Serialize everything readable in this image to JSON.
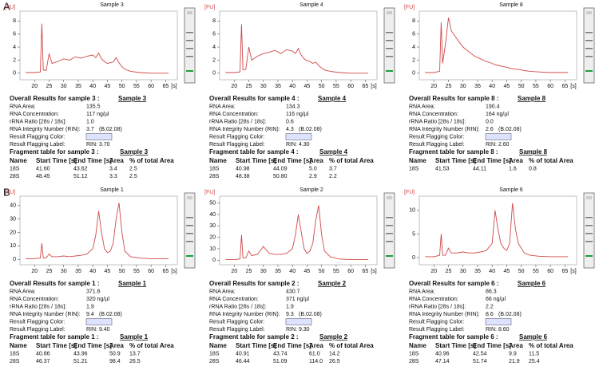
{
  "panel_labels": [
    "A",
    "B"
  ],
  "chart_data": [
    {
      "type": "line",
      "title": "Sample 3",
      "ylabel": "[FU]",
      "xlabel": "[s]",
      "color": "#d04848",
      "x": [
        17,
        20,
        22,
        22.5,
        23,
        24,
        25,
        26,
        28,
        30,
        32,
        34,
        36,
        38,
        40,
        41,
        42,
        43,
        44,
        45,
        46,
        47,
        48,
        49,
        50,
        51,
        53,
        56,
        60,
        66
      ],
      "values": [
        0.1,
        0.1,
        0.2,
        7.6,
        0.5,
        0.4,
        3.0,
        1.5,
        1.8,
        2.2,
        2.0,
        2.5,
        2.3,
        2.6,
        2.8,
        2.4,
        3.1,
        2.2,
        1.8,
        1.5,
        1.6,
        1.7,
        2.4,
        1.6,
        1.0,
        0.6,
        0.3,
        0.1,
        0.0,
        0.0
      ],
      "xlim": [
        15,
        69
      ],
      "ylim": [
        -1,
        9.5
      ],
      "xticks": [
        20,
        25,
        30,
        35,
        40,
        45,
        50,
        55,
        60,
        65
      ],
      "yticks": [
        0,
        2,
        4,
        6,
        8
      ]
    },
    {
      "type": "line",
      "title": "Sample 4",
      "ylabel": "[FU]",
      "xlabel": "[s]",
      "color": "#d04848",
      "x": [
        17,
        20,
        22,
        22.5,
        23,
        24,
        25,
        26,
        28,
        30,
        32,
        34,
        36,
        38,
        40,
        41,
        42,
        43,
        44,
        45,
        46,
        47,
        48,
        49,
        50,
        51,
        53,
        56,
        60,
        66
      ],
      "values": [
        0.1,
        0.1,
        0.2,
        7.5,
        0.5,
        0.6,
        4.0,
        2.0,
        2.6,
        3.0,
        3.2,
        3.5,
        3.0,
        3.6,
        3.4,
        3.0,
        3.8,
        2.8,
        2.2,
        1.9,
        1.8,
        1.5,
        1.7,
        1.2,
        0.8,
        0.5,
        0.3,
        0.1,
        0.0,
        0.0
      ],
      "xlim": [
        15,
        69
      ],
      "ylim": [
        -1,
        9.5
      ],
      "xticks": [
        20,
        25,
        30,
        35,
        40,
        45,
        50,
        55,
        60,
        65
      ],
      "yticks": [
        0,
        2,
        4,
        6,
        8
      ]
    },
    {
      "type": "line",
      "title": "Sample 8",
      "ylabel": "[FU]",
      "xlabel": "[s]",
      "color": "#d04848",
      "x": [
        17,
        20,
        22,
        22.5,
        23,
        24,
        25,
        26,
        28,
        30,
        32,
        34,
        36,
        38,
        40,
        41,
        42,
        43,
        44,
        45,
        46,
        47,
        48,
        49,
        50,
        51,
        53,
        56,
        60,
        66
      ],
      "values": [
        0.1,
        0.1,
        0.3,
        7.8,
        1.5,
        4.5,
        8.5,
        6.5,
        5.2,
        4.0,
        3.3,
        2.6,
        2.2,
        1.8,
        1.5,
        1.3,
        1.2,
        1.1,
        1.0,
        0.9,
        0.8,
        0.7,
        0.6,
        0.6,
        0.5,
        0.4,
        0.3,
        0.2,
        0.1,
        0.1
      ],
      "xlim": [
        15,
        69
      ],
      "ylim": [
        -1,
        9.5
      ],
      "xticks": [
        20,
        25,
        30,
        35,
        40,
        45,
        50,
        55,
        60,
        65
      ],
      "yticks": [
        0,
        2,
        4,
        6,
        8
      ]
    },
    {
      "type": "line",
      "title": "Sample 1",
      "ylabel": "[FU]",
      "xlabel": "[s]",
      "color": "#d04848",
      "x": [
        17,
        20,
        22,
        22.5,
        23,
        24,
        25,
        26,
        28,
        30,
        32,
        34,
        36,
        38,
        40,
        41,
        42,
        43,
        44,
        45,
        46,
        47,
        48,
        49,
        50,
        51,
        53,
        56,
        60,
        66
      ],
      "values": [
        0.5,
        0.5,
        1,
        12,
        1,
        1,
        4,
        2,
        2,
        2.5,
        2,
        2.5,
        3,
        4,
        8,
        18,
        36,
        20,
        8,
        5,
        6,
        12,
        30,
        42,
        20,
        6,
        2,
        1,
        0.5,
        0.5
      ],
      "xlim": [
        15,
        69
      ],
      "ylim": [
        -4,
        47
      ],
      "xticks": [
        20,
        25,
        30,
        35,
        40,
        45,
        50,
        55,
        60,
        65
      ],
      "yticks": [
        0,
        10,
        20,
        30,
        40
      ]
    },
    {
      "type": "line",
      "title": "Sample 2",
      "ylabel": "[FU]",
      "xlabel": "[s]",
      "color": "#d04848",
      "x": [
        17,
        20,
        22,
        22.5,
        23,
        24,
        25,
        26,
        28,
        30,
        32,
        34,
        36,
        38,
        40,
        41,
        42,
        43,
        44,
        45,
        46,
        47,
        48,
        49,
        50,
        51,
        53,
        56,
        60,
        66
      ],
      "values": [
        0.5,
        0.5,
        1,
        22,
        2,
        2,
        8,
        4,
        5,
        12,
        6,
        5,
        5,
        6,
        10,
        22,
        40,
        25,
        10,
        6,
        8,
        15,
        35,
        48,
        22,
        8,
        3,
        1,
        0.5,
        0.5
      ],
      "xlim": [
        15,
        69
      ],
      "ylim": [
        -4,
        56
      ],
      "xticks": [
        20,
        25,
        30,
        35,
        40,
        45,
        50,
        55,
        60,
        65
      ],
      "yticks": [
        0,
        10,
        20,
        30,
        40,
        50
      ]
    },
    {
      "type": "line",
      "title": "Sample 6",
      "ylabel": "[FU]",
      "xlabel": "[s]",
      "color": "#d04848",
      "x": [
        17,
        20,
        22,
        22.5,
        23,
        24,
        25,
        26,
        28,
        30,
        32,
        34,
        36,
        38,
        40,
        41,
        42,
        43,
        44,
        45,
        46,
        47,
        48,
        49,
        50,
        51,
        53,
        56,
        60,
        66
      ],
      "values": [
        0.2,
        0.2,
        0.5,
        5,
        0.5,
        0.5,
        2,
        1,
        1,
        1.2,
        1,
        1,
        1.2,
        1.5,
        3,
        10,
        6,
        3,
        2,
        1.5,
        3,
        11.5,
        6,
        3,
        2,
        1,
        0.5,
        0.3,
        0.2,
        0.2
      ],
      "xlim": [
        15,
        69
      ],
      "ylim": [
        -1.5,
        13
      ],
      "xticks": [
        20,
        25,
        30,
        35,
        40,
        45,
        50,
        55,
        60,
        65
      ],
      "yticks": [
        0,
        5,
        10
      ]
    }
  ],
  "results": [
    {
      "heading": "Overall Results for sample 3 :",
      "sample": "Sample 3",
      "fields": [
        {
          "label": "RNA Area:",
          "value": "135.5"
        },
        {
          "label": "RNA Concentration:",
          "value": "117 ng/µl"
        },
        {
          "label": "rRNA Ratio [28s / 18s]:",
          "value": "1.0"
        },
        {
          "label": "RNA Integrity Number (RIN):",
          "value": "3.7",
          "note": "(B.02.08)"
        },
        {
          "label": "Result Flagging Color:"
        },
        {
          "label": "Result Flagging Label:",
          "value": "RIN: 3.70"
        }
      ],
      "fragment_heading": "Fragment table for sample 3 :",
      "fragment_sample": "Sample 3",
      "columns": [
        "Name",
        "Start Time [s]",
        "End Time [s]",
        "Area",
        "% of total Area"
      ],
      "rows": [
        [
          "18S",
          "41.60",
          "43.62",
          "3.4",
          "2.5"
        ],
        [
          "28S",
          "48.45",
          "51.12",
          "3.3",
          "2.5"
        ]
      ]
    },
    {
      "heading": "Overall Results for sample 4 :",
      "sample": "Sample 4",
      "fields": [
        {
          "label": "RNA Area:",
          "value": "134.3"
        },
        {
          "label": "RNA Concentration:",
          "value": "116 ng/µl"
        },
        {
          "label": "rRNA Ratio [28s / 18s]:",
          "value": "0.6"
        },
        {
          "label": "RNA Integrity Number (RIN):",
          "value": "4.3",
          "note": "(B.02.08)"
        },
        {
          "label": "Result Flagging Color:"
        },
        {
          "label": "Result Flagging Label:",
          "value": "RIN: 4.30"
        }
      ],
      "fragment_heading": "Fragment table for sample 4 :",
      "fragment_sample": "Sample 4",
      "columns": [
        "Name",
        "Start Time [s]",
        "End Time [s]",
        "Area",
        "% of total Area"
      ],
      "rows": [
        [
          "18S",
          "40.98",
          "44.09",
          "5.0",
          "3.7"
        ],
        [
          "28S",
          "48.38",
          "50.80",
          "2.9",
          "2.2"
        ]
      ]
    },
    {
      "heading": "Overall Results for sample 8 :",
      "sample": "Sample 8",
      "fields": [
        {
          "label": "RNA Area:",
          "value": "190.4"
        },
        {
          "label": "RNA Concentration:",
          "value": "164 ng/µl"
        },
        {
          "label": "rRNA Ratio [28s / 18s]:",
          "value": "0.0"
        },
        {
          "label": "RNA Integrity Number (RIN):",
          "value": "2.6",
          "note": "(B.02.08)"
        },
        {
          "label": "Result Flagging Color:"
        },
        {
          "label": "Result Flagging Label:",
          "value": "RIN: 2.60"
        }
      ],
      "fragment_heading": "Fragment table for sample 8 :",
      "fragment_sample": "Sample 8",
      "columns": [
        "Name",
        "Start Time [s]",
        "End Time [s]",
        "Area",
        "% of total Area"
      ],
      "rows": [
        [
          "18S",
          "41.53",
          "44.11",
          "1.6",
          "0.8"
        ]
      ]
    },
    {
      "heading": "Overall Results for sample 1 :",
      "sample": "Sample 1",
      "fields": [
        {
          "label": "RNA Area:",
          "value": "371.6"
        },
        {
          "label": "RNA Concentration:",
          "value": "320 ng/µl"
        },
        {
          "label": "rRNA Ratio [28s / 18s]:",
          "value": "1.9"
        },
        {
          "label": "RNA Integrity Number (RIN):",
          "value": "9.4",
          "note": "(B.02.08)"
        },
        {
          "label": "Result Flagging Color:"
        },
        {
          "label": "Result Flagging Label:",
          "value": "RIN: 9.40"
        }
      ],
      "fragment_heading": "Fragment table for sample 1 :",
      "fragment_sample": "Sample 1",
      "columns": [
        "Name",
        "Start Time [s]",
        "End Time [s]",
        "Area",
        "% of total Area"
      ],
      "rows": [
        [
          "18S",
          "40.86",
          "43.96",
          "50.9",
          "13.7"
        ],
        [
          "28S",
          "46.37",
          "51.21",
          "98.4",
          "26.5"
        ]
      ]
    },
    {
      "heading": "Overall Results for sample 2 :",
      "sample": "Sample 2",
      "fields": [
        {
          "label": "RNA Area:",
          "value": "430.7"
        },
        {
          "label": "RNA Concentration:",
          "value": "371 ng/µl"
        },
        {
          "label": "rRNA Ratio [28s / 18s]:",
          "value": "1.9"
        },
        {
          "label": "RNA Integrity Number (RIN):",
          "value": "9.3",
          "note": "(B.02.08)"
        },
        {
          "label": "Result Flagging Color:"
        },
        {
          "label": "Result Flagging Label:",
          "value": "RIN: 9.30"
        }
      ],
      "fragment_heading": "Fragment table for sample 2 :",
      "fragment_sample": "Sample 2",
      "columns": [
        "Name",
        "Start Time [s]",
        "End Time [s]",
        "Area",
        "% of total Area"
      ],
      "rows": [
        [
          "18S",
          "40.91",
          "43.74",
          "61.0",
          "14.2"
        ],
        [
          "28S",
          "46.44",
          "51.09",
          "114.0",
          "26.5"
        ]
      ]
    },
    {
      "heading": "Overall Results for sample 6 :",
      "sample": "Sample 6",
      "fields": [
        {
          "label": "RNA Area:",
          "value": "86.3"
        },
        {
          "label": "RNA Concentration:",
          "value": "66 ng/µl"
        },
        {
          "label": "rRNA Ratio [28s / 18s]:",
          "value": "2.2"
        },
        {
          "label": "RNA Integrity Number (RIN):",
          "value": "8.6",
          "note": "(B.02.08)"
        },
        {
          "label": "Result Flagging Color:"
        },
        {
          "label": "Result Flagging Label:",
          "value": "RIN: 8.60"
        }
      ],
      "fragment_heading": "Fragment table for sample 6 :",
      "fragment_sample": "Sample 6",
      "columns": [
        "Name",
        "Start Time [s]",
        "End Time [s]",
        "Area",
        "% of total Area"
      ],
      "rows": [
        [
          "18S",
          "40.96",
          "42.54",
          "9.9",
          "11.5"
        ],
        [
          "28S",
          "47.14",
          "51.74",
          "21.9",
          "25.4"
        ]
      ]
    }
  ]
}
